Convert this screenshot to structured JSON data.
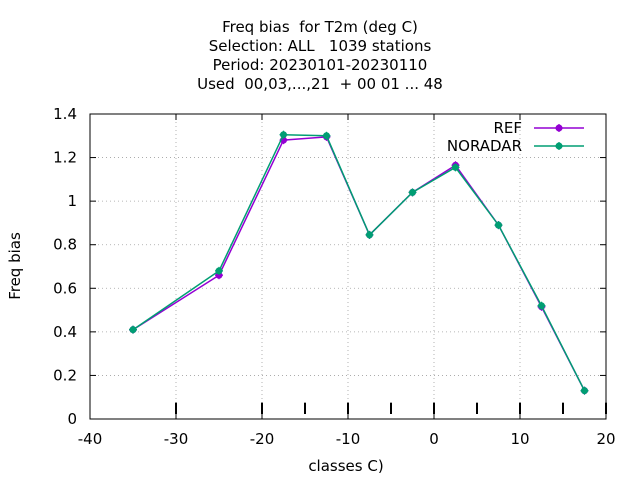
{
  "chart_data": {
    "type": "line",
    "title_lines": [
      "Freq bias  for T2m (deg C)",
      "Selection: ALL   1039 stations",
      "Period: 20230101-20230110",
      "Used  00,03,...,21  + 00 01 ... 48"
    ],
    "xlabel": "classes C)",
    "ylabel": "Freq bias",
    "xlim": [
      -40,
      20
    ],
    "ylim": [
      0,
      1.4
    ],
    "xticks": [
      -40,
      -30,
      -20,
      -10,
      0,
      10,
      20
    ],
    "yticks": [
      0,
      0.2,
      0.4,
      0.6,
      0.8,
      1,
      1.2,
      1.4
    ],
    "xtick_labels": [
      "-40",
      "-30",
      "-20",
      "-10",
      "0",
      "10",
      "20"
    ],
    "ytick_labels": [
      "0",
      "0.2",
      "0.4",
      "0.6",
      "0.8",
      "1",
      "1.2",
      "1.4"
    ],
    "grid": true,
    "legend_position": "top-right",
    "class_bounds": [
      -30,
      -20,
      -15,
      -10,
      -5,
      0,
      5,
      10,
      15,
      20
    ],
    "series": [
      {
        "name": "REF",
        "color": "#9400d3",
        "x": [
          -35,
          -25,
          -17.5,
          -12.5,
          -7.5,
          -2.5,
          2.5,
          7.5,
          12.5,
          17.5
        ],
        "y": [
          0.41,
          0.66,
          1.28,
          1.295,
          0.845,
          1.04,
          1.165,
          0.89,
          0.515,
          0.13
        ]
      },
      {
        "name": "NORADAR",
        "color": "#009e73",
        "x": [
          -35,
          -25,
          -17.5,
          -12.5,
          -7.5,
          -2.5,
          2.5,
          7.5,
          12.5,
          17.5
        ],
        "y": [
          0.41,
          0.68,
          1.305,
          1.3,
          0.845,
          1.04,
          1.155,
          0.89,
          0.52,
          0.13
        ]
      }
    ]
  }
}
